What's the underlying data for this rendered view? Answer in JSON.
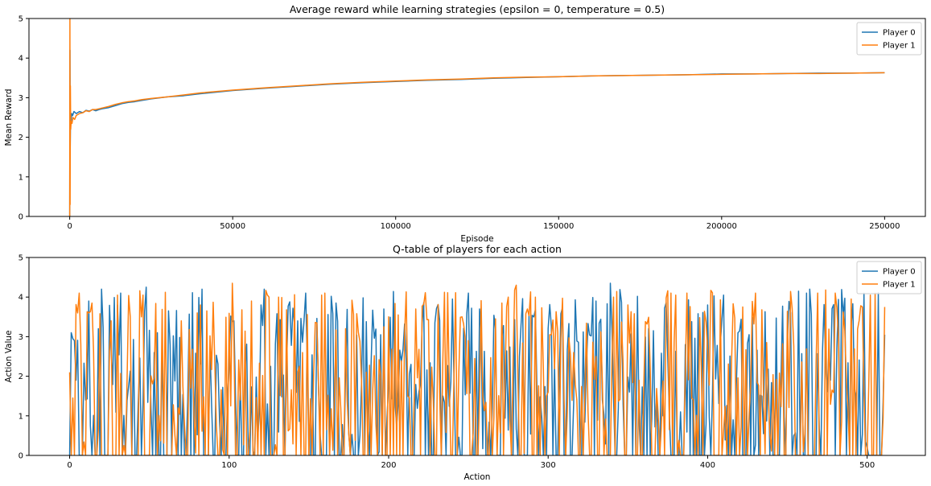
{
  "chart_data": [
    {
      "type": "line",
      "title": "Average reward while learning strategies (epsilon = 0, temperature = 0.5)",
      "xlabel": "Episode",
      "ylabel": "Mean Reward",
      "xlim": [
        -12500,
        262500
      ],
      "ylim": [
        0,
        5
      ],
      "xticks": [
        0,
        50000,
        100000,
        150000,
        200000,
        250000
      ],
      "xtick_labels": [
        "0",
        "50000",
        "100000",
        "150000",
        "200000",
        "250000"
      ],
      "yticks": [
        0,
        1,
        2,
        3,
        4,
        5
      ],
      "ytick_labels": [
        "0",
        "1",
        "2",
        "3",
        "4",
        "5"
      ],
      "grid": false,
      "legend": "top-right",
      "series": [
        {
          "name": "Player 0",
          "color": "#1f77b4",
          "x": [
            0,
            80,
            150,
            250,
            400,
            600,
            900,
            1300,
            2000,
            3000,
            4000,
            5000,
            6000,
            7000,
            8000,
            9000,
            10000,
            12000,
            14000,
            16000,
            18000,
            20000,
            22000,
            25000,
            30000,
            35000,
            40000,
            50000,
            60000,
            70000,
            80000,
            90000,
            100000,
            110000,
            120000,
            130000,
            140000,
            150000,
            160000,
            170000,
            180000,
            190000,
            200000,
            210000,
            220000,
            230000,
            240000,
            250000
          ],
          "y": [
            0,
            4.2,
            1.7,
            2.5,
            2.35,
            2.6,
            2.55,
            2.65,
            2.6,
            2.65,
            2.62,
            2.68,
            2.66,
            2.7,
            2.67,
            2.7,
            2.72,
            2.75,
            2.8,
            2.85,
            2.88,
            2.9,
            2.93,
            2.97,
            3.02,
            3.05,
            3.1,
            3.18,
            3.24,
            3.29,
            3.34,
            3.38,
            3.41,
            3.44,
            3.46,
            3.49,
            3.51,
            3.53,
            3.55,
            3.56,
            3.57,
            3.58,
            3.6,
            3.6,
            3.61,
            3.62,
            3.62,
            3.63
          ]
        },
        {
          "name": "Player 1",
          "color": "#ff7f0e",
          "x": [
            0,
            60,
            120,
            200,
            300,
            450,
            700,
            1000,
            1500,
            2000,
            3000,
            4000,
            5000,
            6000,
            7000,
            8000,
            9000,
            10000,
            12000,
            14000,
            16000,
            18000,
            20000,
            22000,
            25000,
            30000,
            35000,
            40000,
            50000,
            60000,
            70000,
            80000,
            90000,
            100000,
            110000,
            120000,
            130000,
            140000,
            150000,
            160000,
            170000,
            180000,
            190000,
            200000,
            210000,
            220000,
            230000,
            240000,
            250000
          ],
          "y": [
            0,
            5,
            0.3,
            3.3,
            2.2,
            2.4,
            2.35,
            2.5,
            2.45,
            2.55,
            2.6,
            2.62,
            2.67,
            2.65,
            2.7,
            2.7,
            2.72,
            2.74,
            2.78,
            2.83,
            2.87,
            2.9,
            2.92,
            2.95,
            2.98,
            3.02,
            3.07,
            3.12,
            3.19,
            3.25,
            3.3,
            3.35,
            3.39,
            3.42,
            3.45,
            3.47,
            3.5,
            3.52,
            3.53,
            3.55,
            3.56,
            3.57,
            3.58,
            3.59,
            3.6,
            3.61,
            3.61,
            3.62,
            3.63
          ]
        }
      ]
    },
    {
      "type": "line",
      "title": "Q-table of players for each action",
      "xlabel": "Action",
      "ylabel": "Action Value",
      "xlim": [
        -25.5,
        536.5
      ],
      "ylim": [
        0,
        5
      ],
      "xticks": [
        0,
        100,
        200,
        300,
        400,
        500
      ],
      "xtick_labels": [
        "0",
        "100",
        "200",
        "300",
        "400",
        "500"
      ],
      "yticks": [
        0,
        1,
        2,
        3,
        4,
        5
      ],
      "ytick_labels": [
        "0",
        "1",
        "2",
        "3",
        "4",
        "5"
      ],
      "grid": false,
      "legend": "top-right",
      "n_points": 512,
      "series": [
        {
          "name": "Player 0",
          "color": "#1f77b4",
          "key_points": [
            [
              0,
              0
            ],
            [
              1,
              3.1
            ],
            [
              2,
              2.95
            ],
            [
              3,
              2.9
            ],
            [
              4,
              1.9
            ],
            [
              7,
              0
            ],
            [
              10,
              1.4
            ],
            [
              14,
              0
            ],
            [
              18,
              3.2
            ],
            [
              20,
              4.2
            ],
            [
              23,
              0
            ],
            [
              30,
              3.8
            ],
            [
              32,
              4.1
            ],
            [
              35,
              0
            ],
            [
              48,
              4.25
            ],
            [
              52,
              0
            ],
            [
              70,
              0
            ],
            [
              83,
              4.2
            ],
            [
              86,
              0
            ],
            [
              100,
              2.2
            ],
            [
              103,
              3.4
            ],
            [
              106,
              0
            ],
            [
              120,
              3.8
            ],
            [
              122,
              4.2
            ],
            [
              125,
              0
            ],
            [
              148,
              4.1
            ],
            [
              151,
              0
            ],
            [
              200,
              1.8
            ],
            [
              250,
              4.1
            ],
            [
              253,
              0
            ],
            [
              300,
              3.2
            ],
            [
              330,
              3.9
            ],
            [
              339,
              4.35
            ],
            [
              342,
              0
            ],
            [
              400,
              3.8
            ],
            [
              410,
              4.05
            ],
            [
              413,
              0
            ],
            [
              452,
              3.6
            ],
            [
              462,
              4.1
            ],
            [
              464,
              4.2
            ],
            [
              467,
              0
            ],
            [
              498,
              4.1
            ],
            [
              501,
              0
            ],
            [
              511,
              3.05
            ]
          ]
        },
        {
          "name": "Player 1",
          "color": "#ff7f0e",
          "key_points": [
            [
              0,
              2.1
            ],
            [
              1,
              0
            ],
            [
              2,
              1.45
            ],
            [
              3,
              0
            ],
            [
              5,
              3.6
            ],
            [
              6,
              4.1
            ],
            [
              8,
              0
            ],
            [
              12,
              3.6
            ],
            [
              14,
              3.85
            ],
            [
              16,
              0
            ],
            [
              26,
              3.4
            ],
            [
              30,
              4.05
            ],
            [
              33,
              0
            ],
            [
              45,
              3.5
            ],
            [
              46,
              4.05
            ],
            [
              49,
              0
            ],
            [
              80,
              3.6
            ],
            [
              82,
              3.8
            ],
            [
              85,
              0
            ],
            [
              102,
              4.35
            ],
            [
              105,
              0
            ],
            [
              125,
              4.0
            ],
            [
              131,
              4.0
            ],
            [
              134,
              0
            ],
            [
              160,
              4.1
            ],
            [
              163,
              0
            ],
            [
              200,
              3.5
            ],
            [
              250,
              2.9
            ],
            [
              275,
              4.0
            ],
            [
              280,
              4.3
            ],
            [
              283,
              0
            ],
            [
              300,
              1.6
            ],
            [
              310,
              1.4
            ],
            [
              350,
              3.8
            ],
            [
              380,
              4.05
            ],
            [
              383,
              0
            ],
            [
              430,
              4.1
            ],
            [
              433,
              0
            ],
            [
              480,
              4.1
            ],
            [
              483,
              0
            ],
            [
              490,
              3.95
            ],
            [
              493,
              0
            ],
            [
              505,
              4.1
            ],
            [
              508,
              0
            ],
            [
              511,
              3.75
            ]
          ]
        }
      ]
    }
  ]
}
